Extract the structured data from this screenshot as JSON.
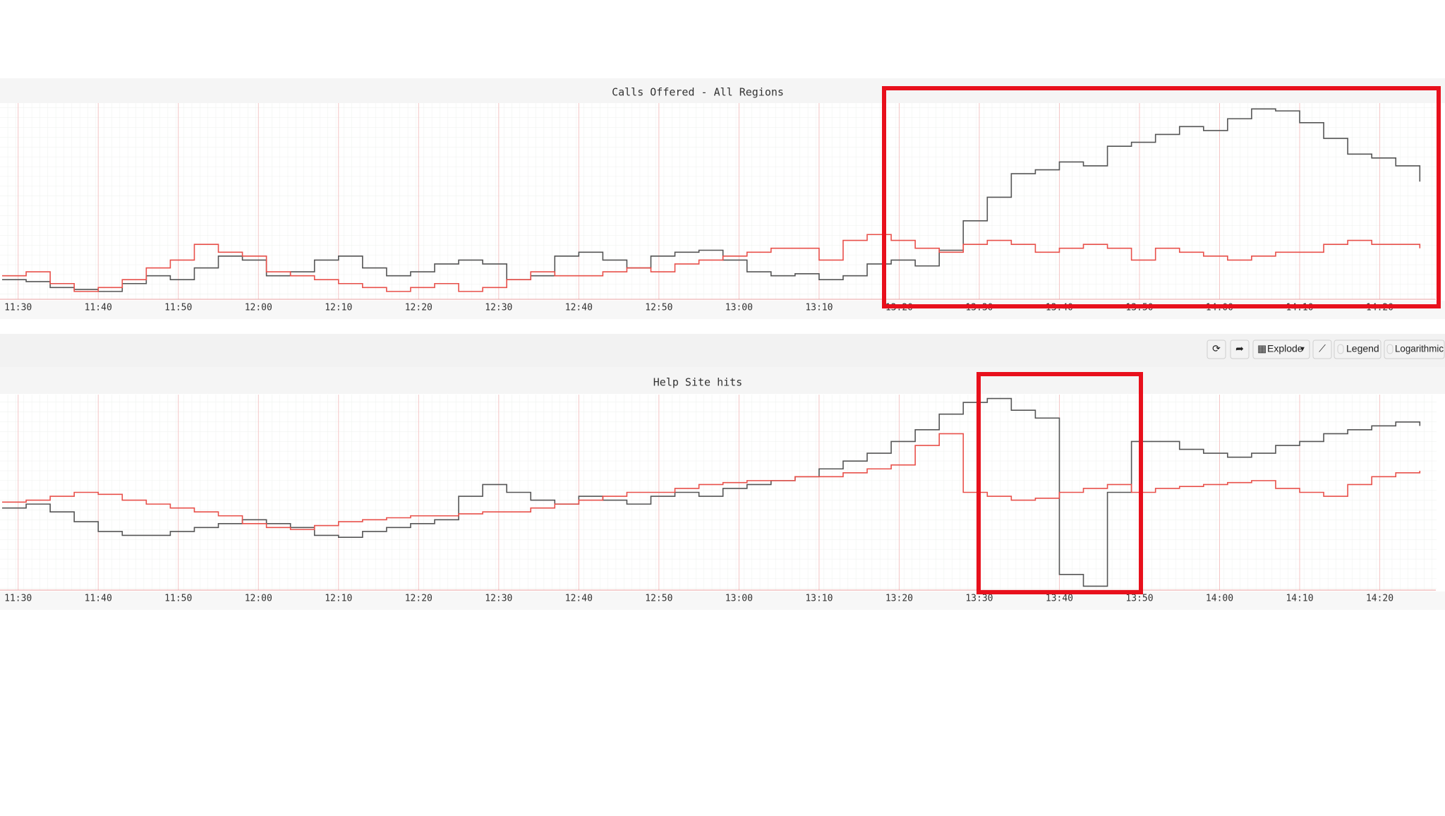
{
  "chart_data": [
    {
      "type": "line",
      "title": "Calls Offered - All Regions",
      "x": [
        688,
        691,
        694,
        697,
        700,
        703,
        706,
        709,
        712,
        715,
        718,
        721,
        724,
        727,
        730,
        733,
        736,
        739,
        742,
        745,
        748,
        751,
        754,
        757,
        760,
        763,
        766,
        769,
        772,
        775,
        778,
        781,
        784,
        787,
        790,
        793,
        796,
        799,
        802,
        805,
        808,
        811,
        814,
        817,
        820,
        823,
        826,
        829,
        832,
        835,
        838,
        841,
        844,
        847,
        850,
        853,
        856,
        859,
        862,
        865
      ],
      "series": [
        {
          "color": "#555555",
          "values": [
            10,
            9,
            6,
            5,
            4,
            8,
            12,
            10,
            16,
            22,
            20,
            12,
            14,
            20,
            22,
            16,
            12,
            14,
            18,
            20,
            18,
            10,
            12,
            22,
            24,
            20,
            16,
            22,
            24,
            25,
            20,
            14,
            12,
            13,
            10,
            12,
            18,
            20,
            17,
            25,
            40,
            52,
            64,
            66,
            70,
            68,
            78,
            80,
            84,
            88,
            86,
            92,
            97,
            96,
            90,
            82,
            74,
            72,
            68,
            60
          ]
        },
        {
          "color": "#e8504a",
          "values": [
            12,
            14,
            8,
            4,
            6,
            10,
            16,
            20,
            28,
            24,
            22,
            14,
            12,
            10,
            8,
            6,
            4,
            6,
            8,
            4,
            6,
            10,
            14,
            12,
            12,
            14,
            16,
            14,
            18,
            20,
            22,
            24,
            26,
            26,
            20,
            30,
            33,
            30,
            26,
            24,
            28,
            30,
            28,
            24,
            26,
            28,
            26,
            20,
            26,
            24,
            22,
            20,
            22,
            24,
            24,
            28,
            30,
            28,
            28,
            26
          ]
        }
      ],
      "xlim": [
        688,
        867
      ],
      "ylim": [
        0,
        100
      ],
      "xticks": [
        {
          "value": 690,
          "label": "11:30"
        },
        {
          "value": 700,
          "label": "11:40"
        },
        {
          "value": 710,
          "label": "11:50"
        },
        {
          "value": 720,
          "label": "12:00"
        },
        {
          "value": 730,
          "label": "12:10"
        },
        {
          "value": 740,
          "label": "12:20"
        },
        {
          "value": 750,
          "label": "12:30"
        },
        {
          "value": 760,
          "label": "12:40"
        },
        {
          "value": 770,
          "label": "12:50"
        },
        {
          "value": 780,
          "label": "13:00"
        },
        {
          "value": 790,
          "label": "13:10"
        },
        {
          "value": 800,
          "label": "13:20"
        },
        {
          "value": 810,
          "label": "13:30"
        },
        {
          "value": 820,
          "label": "13:40"
        },
        {
          "value": 830,
          "label": "13:50"
        },
        {
          "value": 840,
          "label": "14:00"
        },
        {
          "value": 850,
          "label": "14:10"
        },
        {
          "value": 860,
          "label": "14:20"
        }
      ],
      "grid": true
    },
    {
      "type": "line",
      "title": "Help Site hits",
      "x": [
        688,
        691,
        694,
        697,
        700,
        703,
        706,
        709,
        712,
        715,
        718,
        721,
        724,
        727,
        730,
        733,
        736,
        739,
        742,
        745,
        748,
        751,
        754,
        757,
        760,
        763,
        766,
        769,
        772,
        775,
        778,
        781,
        784,
        787,
        790,
        793,
        796,
        799,
        802,
        805,
        808,
        811,
        814,
        817,
        820,
        823,
        826,
        829,
        832,
        835,
        838,
        841,
        844,
        847,
        850,
        853,
        856,
        859,
        862,
        865
      ],
      "series": [
        {
          "color": "#555555",
          "values": [
            42,
            44,
            40,
            35,
            30,
            28,
            28,
            30,
            32,
            34,
            36,
            34,
            32,
            28,
            27,
            30,
            32,
            34,
            36,
            48,
            54,
            50,
            46,
            44,
            48,
            46,
            44,
            48,
            50,
            48,
            52,
            54,
            56,
            58,
            62,
            66,
            70,
            76,
            82,
            90,
            96,
            98,
            92,
            88,
            8,
            2,
            50,
            76,
            76,
            72,
            70,
            68,
            70,
            74,
            76,
            80,
            82,
            84,
            86,
            84
          ]
        },
        {
          "color": "#e8504a",
          "values": [
            45,
            46,
            48,
            50,
            49,
            46,
            44,
            42,
            40,
            38,
            34,
            32,
            31,
            33,
            35,
            36,
            37,
            38,
            38,
            39,
            40,
            40,
            42,
            44,
            46,
            48,
            50,
            50,
            52,
            54,
            55,
            56,
            56,
            58,
            58,
            60,
            62,
            64,
            74,
            80,
            50,
            48,
            46,
            47,
            50,
            52,
            54,
            50,
            52,
            53,
            54,
            55,
            56,
            52,
            50,
            48,
            54,
            58,
            60,
            61
          ]
        }
      ],
      "xlim": [
        688,
        867
      ],
      "ylim": [
        0,
        100
      ],
      "xticks": [
        {
          "value": 690,
          "label": "11:30"
        },
        {
          "value": 700,
          "label": "11:40"
        },
        {
          "value": 710,
          "label": "11:50"
        },
        {
          "value": 720,
          "label": "12:00"
        },
        {
          "value": 730,
          "label": "12:10"
        },
        {
          "value": 740,
          "label": "12:20"
        },
        {
          "value": 750,
          "label": "12:30"
        },
        {
          "value": 760,
          "label": "12:40"
        },
        {
          "value": 770,
          "label": "12:50"
        },
        {
          "value": 780,
          "label": "13:00"
        },
        {
          "value": 790,
          "label": "13:10"
        },
        {
          "value": 800,
          "label": "13:20"
        },
        {
          "value": 810,
          "label": "13:30"
        },
        {
          "value": 820,
          "label": "13:40"
        },
        {
          "value": 830,
          "label": "13:50"
        },
        {
          "value": 840,
          "label": "14:00"
        },
        {
          "value": 850,
          "label": "14:10"
        },
        {
          "value": 860,
          "label": "14:20"
        }
      ],
      "grid": true
    }
  ],
  "toolbar": {
    "explode": "Explode",
    "legend": "Legend",
    "logarithmic": "Logarithmic"
  }
}
